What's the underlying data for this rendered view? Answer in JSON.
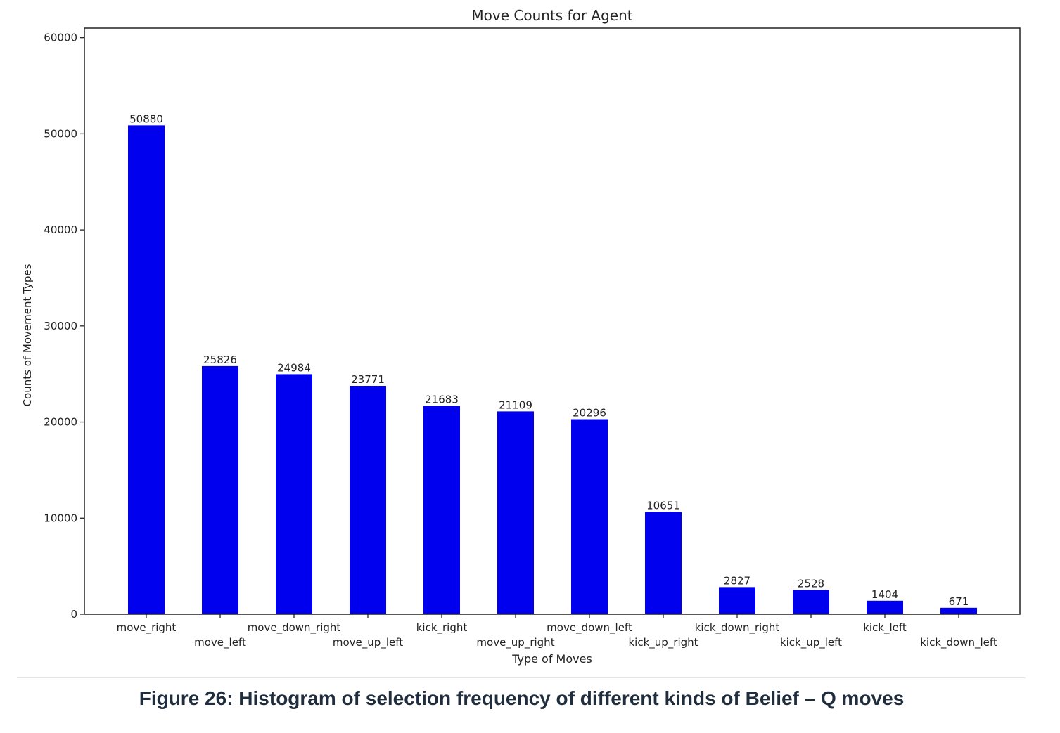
{
  "chart_data": {
    "type": "bar",
    "title": "Move Counts for Agent",
    "xlabel": "Type of Moves",
    "ylabel": "Counts of Movement Types",
    "ylim": [
      0,
      61000
    ],
    "yticks": [
      0,
      10000,
      20000,
      30000,
      40000,
      50000,
      60000
    ],
    "categories": [
      "move_right",
      "move_left",
      "move_down_right",
      "move_up_left",
      "kick_right",
      "move_up_right",
      "move_down_left",
      "kick_up_right",
      "kick_down_right",
      "kick_up_left",
      "kick_left",
      "kick_down_left"
    ],
    "values": [
      50880,
      25826,
      24984,
      23771,
      21683,
      21109,
      20296,
      10651,
      2827,
      2528,
      1404,
      671
    ],
    "data_labels": [
      "50880",
      "25826",
      "24984",
      "23771",
      "21683",
      "21109",
      "20296",
      "10651",
      "2827",
      "2528",
      "1404",
      "671"
    ],
    "bar_color": "#0000ee",
    "grid": false,
    "legend": "none"
  },
  "caption": "Figure 26: Histogram of selection frequency of different kinds of Belief – Q moves"
}
